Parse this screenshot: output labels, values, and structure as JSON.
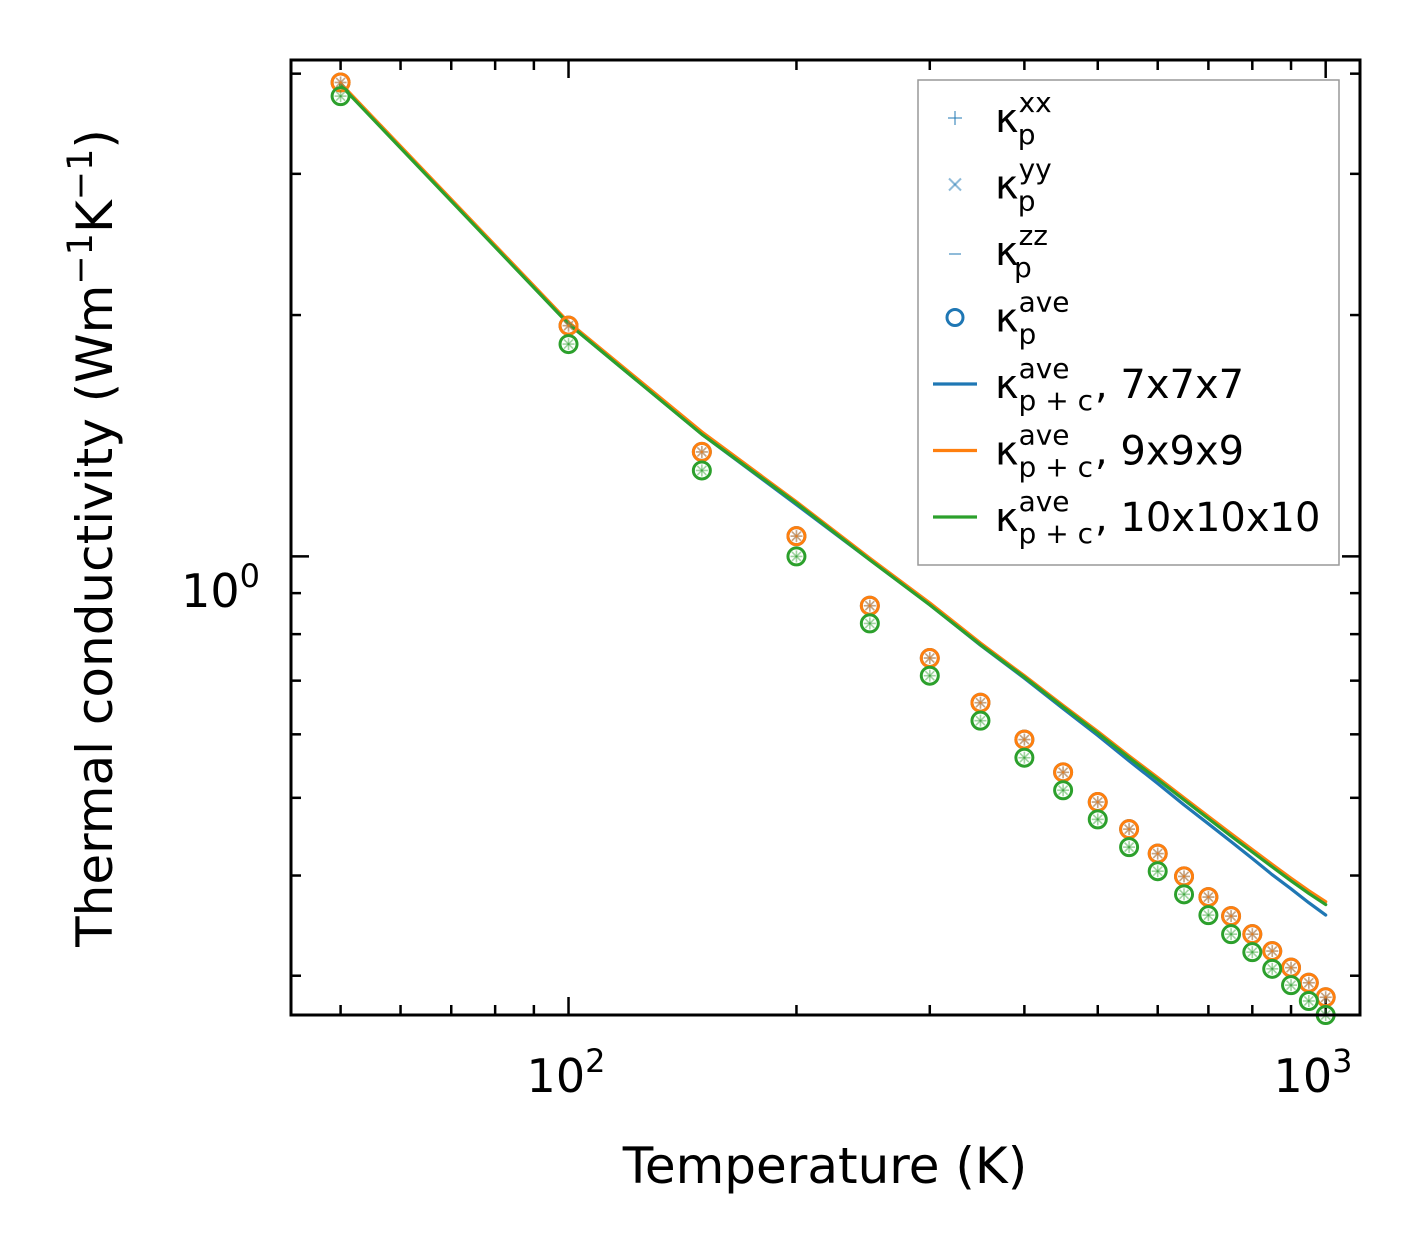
{
  "chart_data": {
    "type": "scatter",
    "xscale": "log",
    "yscale": "log",
    "xlabel": "Temperature (K)",
    "ylabel_main": "Thermal conductivity (Wm",
    "ylabel_sup1": "−1",
    "ylabel_mid": "K",
    "ylabel_sup2": "−1",
    "ylabel_end": ")",
    "xlim": [
      43,
      1110
    ],
    "ylim": [
      0.268,
      4.16
    ],
    "x_ticks": [
      {
        "base": "10",
        "exp": "2",
        "value": 100
      },
      {
        "base": "10",
        "exp": "3",
        "value": 1000
      }
    ],
    "y_ticks": [
      {
        "base": "10",
        "exp": "0",
        "value": 1
      }
    ],
    "x_points": [
      50,
      100,
      150,
      200,
      250,
      300,
      350,
      400,
      450,
      500,
      550,
      600,
      650,
      700,
      750,
      800,
      850,
      900,
      950,
      1000
    ],
    "point_series": [
      {
        "name": "7x7x7",
        "color": "#1f77b4",
        "values": [
          3.9,
          1.94,
          1.35,
          1.06,
          0.868,
          0.747,
          0.657,
          0.591,
          0.538,
          0.494,
          0.457,
          0.426,
          0.399,
          0.376,
          0.356,
          0.338,
          0.322,
          0.307,
          0.294,
          0.282
        ]
      },
      {
        "name": "9x9x9",
        "color": "#ff7f0e",
        "values": [
          3.9,
          1.94,
          1.35,
          1.06,
          0.868,
          0.747,
          0.657,
          0.591,
          0.538,
          0.494,
          0.457,
          0.426,
          0.399,
          0.376,
          0.356,
          0.338,
          0.322,
          0.307,
          0.294,
          0.282
        ]
      },
      {
        "name": "10x10x10",
        "color": "#2ca02c",
        "values": [
          3.75,
          1.84,
          1.28,
          1.0,
          0.825,
          0.71,
          0.624,
          0.561,
          0.511,
          0.47,
          0.434,
          0.405,
          0.379,
          0.357,
          0.338,
          0.321,
          0.306,
          0.292,
          0.279,
          0.268
        ]
      }
    ],
    "line_series": [
      {
        "name": "7x7x7",
        "color": "#1f77b4",
        "values": [
          3.88,
          1.95,
          1.42,
          1.16,
          0.99,
          0.87,
          0.775,
          0.705,
          0.646,
          0.598,
          0.556,
          0.521,
          0.49,
          0.464,
          0.441,
          0.42,
          0.401,
          0.385,
          0.37,
          0.357
        ]
      },
      {
        "name": "9x9x9",
        "color": "#ff7f0e",
        "values": [
          3.89,
          1.96,
          1.43,
          1.17,
          0.995,
          0.875,
          0.78,
          0.71,
          0.652,
          0.605,
          0.564,
          0.53,
          0.5,
          0.474,
          0.451,
          0.431,
          0.413,
          0.397,
          0.383,
          0.371
        ]
      },
      {
        "name": "10x10x10",
        "color": "#2ca02c",
        "values": [
          3.87,
          1.95,
          1.42,
          1.165,
          0.99,
          0.87,
          0.776,
          0.707,
          0.649,
          0.602,
          0.561,
          0.527,
          0.497,
          0.471,
          0.448,
          0.428,
          0.41,
          0.394,
          0.38,
          0.368
        ]
      }
    ],
    "legend": {
      "position": "upper-right",
      "entries": [
        {
          "symbol": "+",
          "kappa": "κ",
          "sub": "p",
          "sup": "xx",
          "suffix": "",
          "color": "#1f77b4",
          "faded": true
        },
        {
          "symbol": "×",
          "kappa": "κ",
          "sub": "p",
          "sup": "yy",
          "suffix": "",
          "color": "#1f77b4",
          "faded": true
        },
        {
          "symbol": "_",
          "kappa": "κ",
          "sub": "p",
          "sup": "zz",
          "suffix": "",
          "color": "#1f77b4",
          "faded": true
        },
        {
          "symbol": "o",
          "kappa": "κ",
          "sub": "p",
          "sup": "ave",
          "suffix": "",
          "color": "#1f77b4",
          "faded": false
        },
        {
          "symbol": "line",
          "kappa": "κ",
          "sub": "p + c",
          "sup": "ave",
          "suffix": ", 7x7x7",
          "color": "#1f77b4",
          "faded": false
        },
        {
          "symbol": "line",
          "kappa": "κ",
          "sub": "p + c",
          "sup": "ave",
          "suffix": ", 9x9x9",
          "color": "#ff7f0e",
          "faded": false
        },
        {
          "symbol": "line",
          "kappa": "κ",
          "sub": "p + c",
          "sup": "ave",
          "suffix": ", 10x10x10",
          "color": "#2ca02c",
          "faded": false
        }
      ]
    }
  }
}
